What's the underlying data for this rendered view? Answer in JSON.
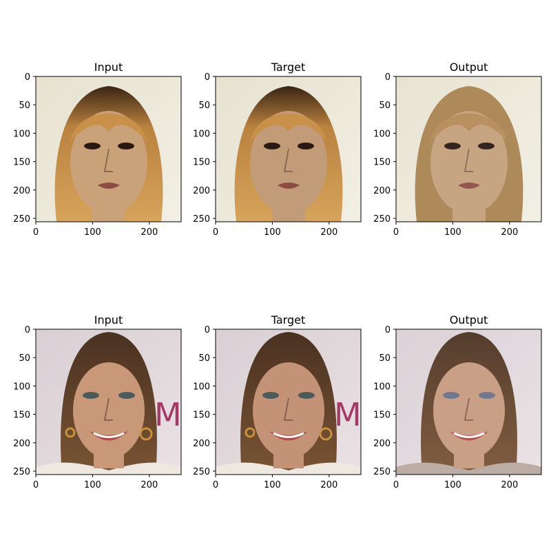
{
  "chart_data": {
    "type": "image-grid",
    "rows": 2,
    "cols": 3,
    "xlim": [
      0,
      256
    ],
    "ylim": [
      256,
      0
    ],
    "xticks": [
      0,
      100,
      200
    ],
    "yticks": [
      0,
      50,
      100,
      150,
      200,
      250
    ],
    "panels": [
      {
        "title": "Input",
        "image": "face-portrait-blonde-bangs",
        "tone": "#c9a27a"
      },
      {
        "title": "Target",
        "image": "face-portrait-blonde-bangs",
        "tone": "#c29c78"
      },
      {
        "title": "Output",
        "image": "face-portrait-blonde-generated",
        "tone": "#c4a07c"
      },
      {
        "title": "Input",
        "image": "face-portrait-smiling-earrings",
        "tone": "#c99878"
      },
      {
        "title": "Target",
        "image": "face-portrait-smiling-earrings",
        "tone": "#c49276"
      },
      {
        "title": "Output",
        "image": "face-portrait-smiling-generated",
        "tone": "#c69a7e"
      }
    ]
  }
}
